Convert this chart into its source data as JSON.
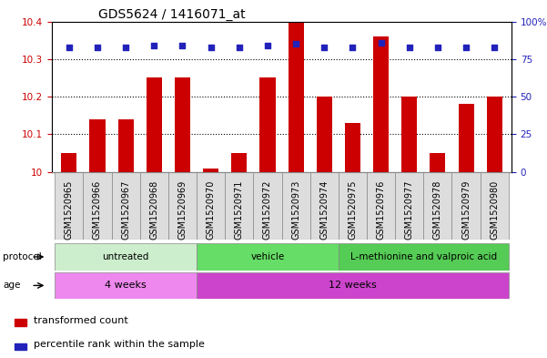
{
  "title": "GDS5624 / 1416071_at",
  "samples": [
    "GSM1520965",
    "GSM1520966",
    "GSM1520967",
    "GSM1520968",
    "GSM1520969",
    "GSM1520970",
    "GSM1520971",
    "GSM1520972",
    "GSM1520973",
    "GSM1520974",
    "GSM1520975",
    "GSM1520976",
    "GSM1520977",
    "GSM1520978",
    "GSM1520979",
    "GSM1520980"
  ],
  "bar_values": [
    10.05,
    10.14,
    10.14,
    10.25,
    10.25,
    10.01,
    10.05,
    10.25,
    10.4,
    10.2,
    10.13,
    10.36,
    10.2,
    10.05,
    10.18,
    10.2
  ],
  "percentile_values": [
    83,
    83,
    83,
    84,
    84,
    83,
    83,
    84,
    85,
    83,
    83,
    86,
    83,
    83,
    83,
    83
  ],
  "ylim_left": [
    10.0,
    10.4
  ],
  "ylim_right": [
    0,
    100
  ],
  "yticks_left": [
    10.0,
    10.1,
    10.2,
    10.3,
    10.4
  ],
  "ytick_labels_left": [
    "10",
    "10.1",
    "10.2",
    "10.3",
    "10.4"
  ],
  "yticks_right": [
    0,
    25,
    50,
    75,
    100
  ],
  "ytick_labels_right": [
    "0",
    "25",
    "50",
    "75",
    "100%"
  ],
  "dotted_lines": [
    10.1,
    10.2,
    10.3
  ],
  "bar_color": "#CC0000",
  "dot_color": "#2222BB",
  "protocol_groups": [
    {
      "label": "untreated",
      "start": 0,
      "end": 4,
      "color": "#CCEECC"
    },
    {
      "label": "vehicle",
      "start": 5,
      "end": 9,
      "color": "#66DD66"
    },
    {
      "label": "L-methionine and valproic acid",
      "start": 10,
      "end": 15,
      "color": "#44BB44"
    }
  ],
  "age_groups": [
    {
      "label": "4 weeks",
      "start": 0,
      "end": 4,
      "color": "#EE88EE"
    },
    {
      "label": "12 weeks",
      "start": 5,
      "end": 15,
      "color": "#DD44DD"
    }
  ],
  "legend_items": [
    {
      "label": "transformed count",
      "color": "#CC0000"
    },
    {
      "label": "percentile rank within the sample",
      "color": "#2222BB"
    }
  ],
  "bg_color": "#FFFFFF",
  "plot_bg_color": "#FFFFFF",
  "grid_color": "#000000",
  "tick_color_left": "#CC0000",
  "tick_color_right": "#2222BB",
  "title_fontsize": 10,
  "label_fontsize": 7,
  "tick_fontsize": 7.5,
  "xticklabel_bg": "#DDDDDD"
}
